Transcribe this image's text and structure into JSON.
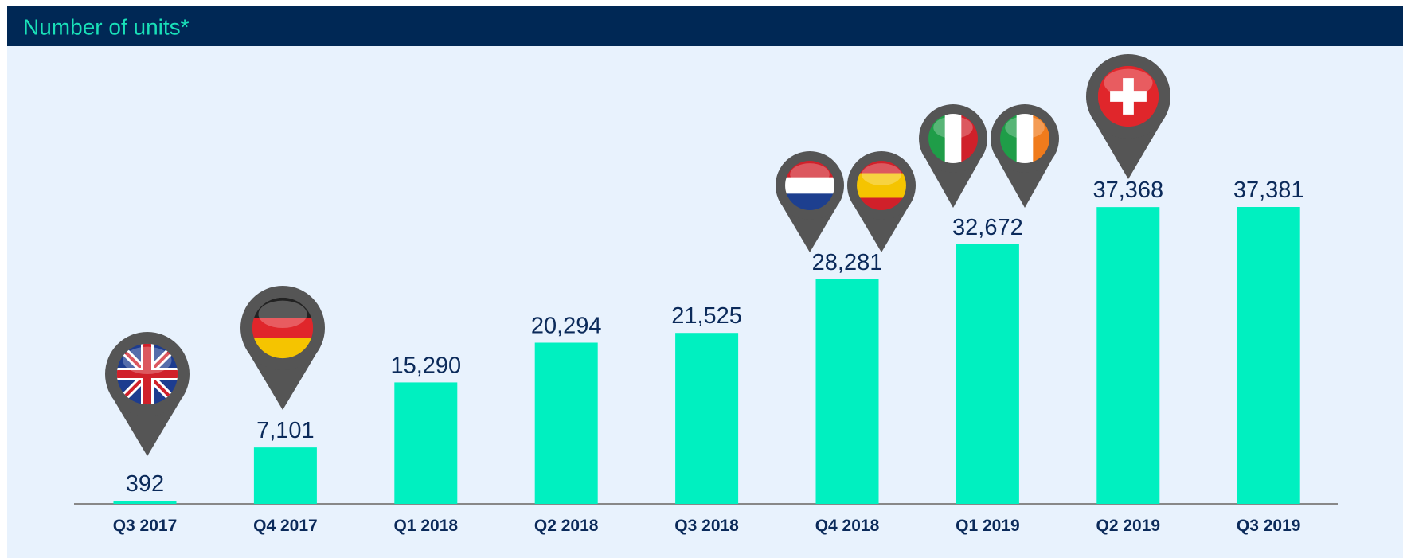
{
  "chart_data": {
    "type": "bar",
    "title": "Number of units*",
    "categories": [
      "Q3 2017",
      "Q4 2017",
      "Q1 2018",
      "Q2 2018",
      "Q3 2018",
      "Q4 2018",
      "Q1 2019",
      "Q2 2019",
      "Q3 2019"
    ],
    "values": [
      392,
      7101,
      15290,
      20294,
      21525,
      28281,
      32672,
      37368,
      37381
    ],
    "value_labels": [
      "392",
      "7,101",
      "15,290",
      "20,294",
      "21,525",
      "28,281",
      "32,672",
      "37,368",
      "37,381"
    ],
    "color": "#00f0c0"
  }
}
